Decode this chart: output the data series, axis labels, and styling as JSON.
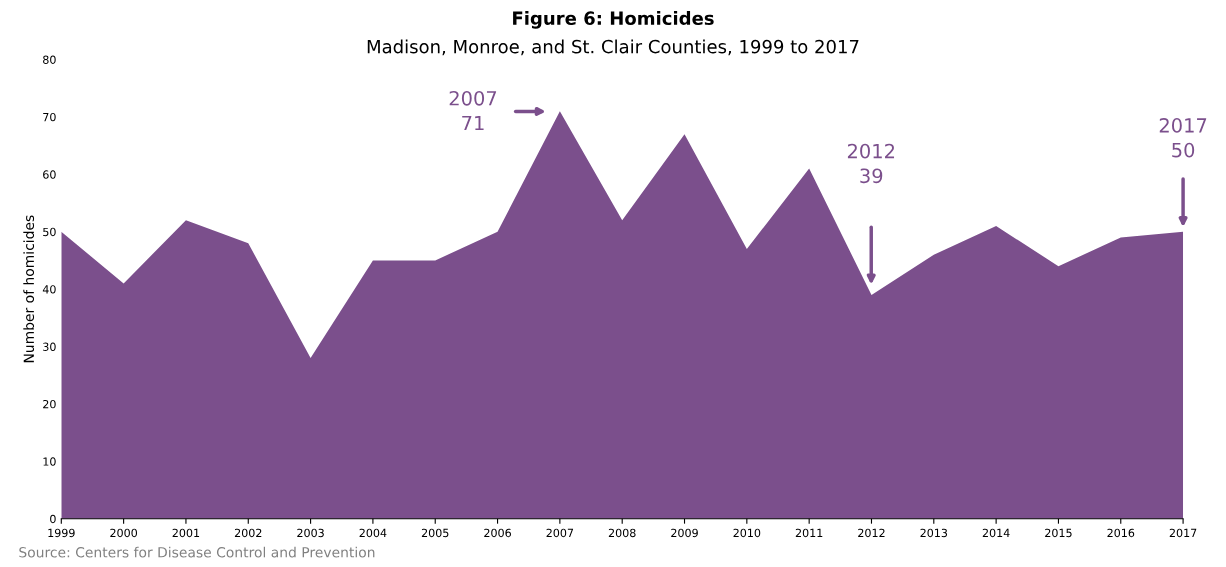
{
  "chart_data": {
    "type": "area",
    "title": "Figure 6: Homicides",
    "subtitle": "Madison, Monroe, and St. Clair Counties, 1999 to 2017",
    "ylabel": "Number of homicides",
    "categories": [
      "1999",
      "2000",
      "2001",
      "2002",
      "2003",
      "2004",
      "2005",
      "2006",
      "2007",
      "2008",
      "2009",
      "2010",
      "2011",
      "2012",
      "2013",
      "2014",
      "2015",
      "2016",
      "2017"
    ],
    "series": [
      {
        "color": "#7b4f8c",
        "values": [
          50,
          41,
          52,
          48,
          28,
          45,
          45,
          50,
          71,
          52,
          67,
          47,
          61,
          39,
          46,
          51,
          44,
          49,
          50
        ]
      }
    ],
    "ylim": [
      0,
      80
    ],
    "yticks": [
      0,
      10,
      20,
      30,
      40,
      50,
      60,
      70,
      80
    ],
    "grid": false,
    "annotations": [
      "2007\n71",
      "2012\n39",
      "2017\n50",
      "Source: Centers for Disease Control and Prevention"
    ]
  }
}
